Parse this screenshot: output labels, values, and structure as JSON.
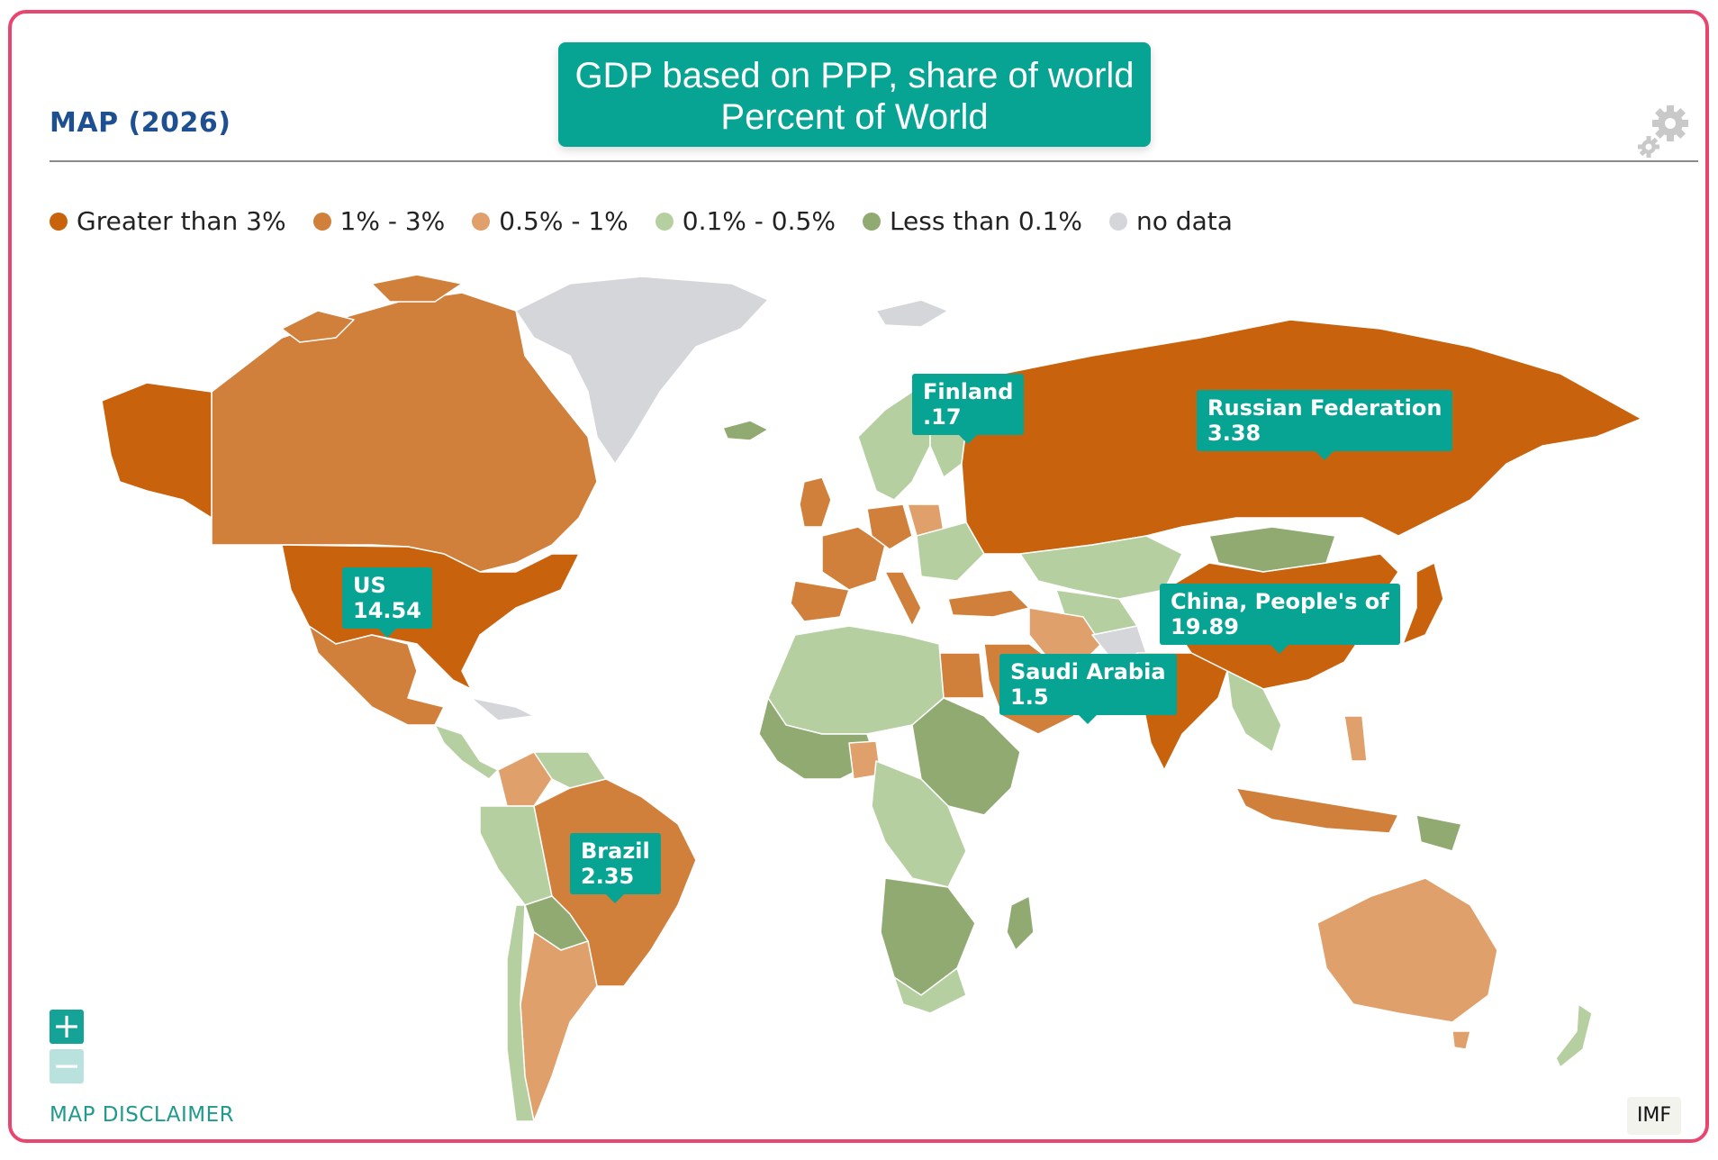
{
  "header": {
    "map_title": "MAP (2026)",
    "title_line1": "GDP based on PPP, share of world",
    "title_line2": "Percent of World"
  },
  "legend": [
    {
      "label": "Greater than 3%",
      "color": "#c8620c"
    },
    {
      "label": "1% - 3%",
      "color": "#d0803b"
    },
    {
      "label": "0.5% - 1%",
      "color": "#e0a06b"
    },
    {
      "label": "0.1% - 0.5%",
      "color": "#b6cfa1"
    },
    {
      "label": "Less than 0.1%",
      "color": "#90aa72"
    },
    {
      "label": "no data",
      "color": "#d5d6da"
    }
  ],
  "callouts": [
    {
      "country": "Finland",
      "value": ".17"
    },
    {
      "country": "Russian Federation",
      "value": "3.38"
    },
    {
      "country": "US",
      "value": "14.54"
    },
    {
      "country": "China, People's of",
      "value": "19.89"
    },
    {
      "country": "Saudi Arabia",
      "value": "1.5"
    },
    {
      "country": "Brazil",
      "value": "2.35"
    }
  ],
  "controls": {
    "zoom_in": "+",
    "zoom_out": "−"
  },
  "footer": {
    "disclaimer": "MAP DISCLAIMER",
    "imf": "IMF"
  },
  "colors": {
    "accent": "#07a393",
    "frame_border": "#e8466e",
    "title_text": "#1d4f91"
  }
}
